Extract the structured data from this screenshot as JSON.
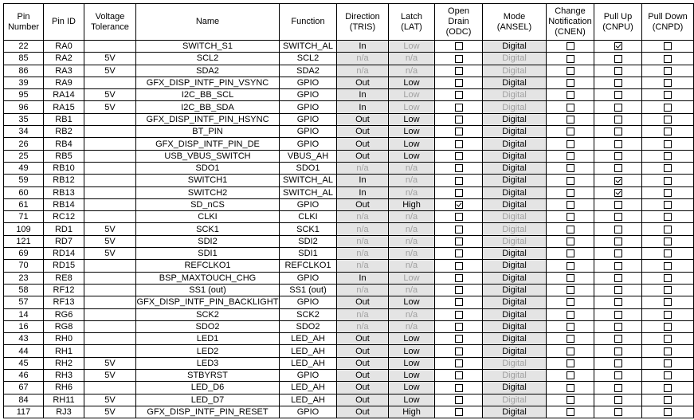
{
  "headers": [
    "Pin Number",
    "Pin ID",
    "Voltage Tolerance",
    "Name",
    "Function",
    "Direction (TRIS)",
    "Latch (LAT)",
    "Open Drain (ODC)",
    "Mode (ANSEL)",
    "Change Notification (CNEN)",
    "Pull Up (CNPU)",
    "Pull Down (CNPD)"
  ],
  "colors": {
    "shaded_cell": "#e4e4e4",
    "disabled_text": "#a0a0a0",
    "border": "#000000"
  },
  "rows": [
    {
      "pin": "22",
      "id": "RA0",
      "volt": "",
      "name": "SWITCH_S1",
      "func": "SWITCH_AL",
      "dir": "In",
      "dir_disabled": false,
      "lat": "Low",
      "lat_disabled": true,
      "odc": false,
      "mode": "Digital",
      "mode_disabled": false,
      "cnen": false,
      "cnpu": true,
      "cnpd": false
    },
    {
      "pin": "85",
      "id": "RA2",
      "volt": "5V",
      "name": "SCL2",
      "func": "SCL2",
      "dir": "n/a",
      "dir_disabled": true,
      "lat": "n/a",
      "lat_disabled": true,
      "odc": false,
      "mode": "Digital",
      "mode_disabled": true,
      "cnen": false,
      "cnpu": false,
      "cnpd": false
    },
    {
      "pin": "86",
      "id": "RA3",
      "volt": "5V",
      "name": "SDA2",
      "func": "SDA2",
      "dir": "n/a",
      "dir_disabled": true,
      "lat": "n/a",
      "lat_disabled": true,
      "odc": false,
      "mode": "Digital",
      "mode_disabled": true,
      "cnen": false,
      "cnpu": false,
      "cnpd": false
    },
    {
      "pin": "39",
      "id": "RA9",
      "volt": "",
      "name": "GFX_DISP_INTF_PIN_VSYNC",
      "func": "GPIO",
      "dir": "Out",
      "dir_disabled": false,
      "lat": "Low",
      "lat_disabled": false,
      "odc": false,
      "mode": "Digital",
      "mode_disabled": false,
      "cnen": false,
      "cnpu": false,
      "cnpd": false
    },
    {
      "pin": "95",
      "id": "RA14",
      "volt": "5V",
      "name": "I2C_BB_SCL",
      "func": "GPIO",
      "dir": "In",
      "dir_disabled": false,
      "lat": "Low",
      "lat_disabled": true,
      "odc": false,
      "mode": "Digital",
      "mode_disabled": true,
      "cnen": false,
      "cnpu": false,
      "cnpd": false
    },
    {
      "pin": "96",
      "id": "RA15",
      "volt": "5V",
      "name": "I2C_BB_SDA",
      "func": "GPIO",
      "dir": "In",
      "dir_disabled": false,
      "lat": "Low",
      "lat_disabled": true,
      "odc": false,
      "mode": "Digital",
      "mode_disabled": true,
      "cnen": false,
      "cnpu": false,
      "cnpd": false
    },
    {
      "pin": "35",
      "id": "RB1",
      "volt": "",
      "name": "GFX_DISP_INTF_PIN_HSYNC",
      "func": "GPIO",
      "dir": "Out",
      "dir_disabled": false,
      "lat": "Low",
      "lat_disabled": false,
      "odc": false,
      "mode": "Digital",
      "mode_disabled": false,
      "cnen": false,
      "cnpu": false,
      "cnpd": false
    },
    {
      "pin": "34",
      "id": "RB2",
      "volt": "",
      "name": "BT_PIN",
      "func": "GPIO",
      "dir": "Out",
      "dir_disabled": false,
      "lat": "Low",
      "lat_disabled": false,
      "odc": false,
      "mode": "Digital",
      "mode_disabled": false,
      "cnen": false,
      "cnpu": false,
      "cnpd": false
    },
    {
      "pin": "26",
      "id": "RB4",
      "volt": "",
      "name": "GFX_DISP_INTF_PIN_DE",
      "func": "GPIO",
      "dir": "Out",
      "dir_disabled": false,
      "lat": "Low",
      "lat_disabled": false,
      "odc": false,
      "mode": "Digital",
      "mode_disabled": false,
      "cnen": false,
      "cnpu": false,
      "cnpd": false
    },
    {
      "pin": "25",
      "id": "RB5",
      "volt": "",
      "name": "USB_VBUS_SWITCH",
      "func": "VBUS_AH",
      "dir": "Out",
      "dir_disabled": false,
      "lat": "Low",
      "lat_disabled": false,
      "odc": false,
      "mode": "Digital",
      "mode_disabled": false,
      "cnen": false,
      "cnpu": false,
      "cnpd": false
    },
    {
      "pin": "49",
      "id": "RB10",
      "volt": "",
      "name": "SDO1",
      "func": "SDO1",
      "dir": "n/a",
      "dir_disabled": true,
      "lat": "n/a",
      "lat_disabled": true,
      "odc": false,
      "mode": "Digital",
      "mode_disabled": false,
      "cnen": false,
      "cnpu": false,
      "cnpd": false
    },
    {
      "pin": "59",
      "id": "RB12",
      "volt": "",
      "name": "SWITCH1",
      "func": "SWITCH_AL",
      "dir": "In",
      "dir_disabled": false,
      "lat": "n/a",
      "lat_disabled": true,
      "odc": false,
      "mode": "Digital",
      "mode_disabled": false,
      "cnen": false,
      "cnpu": true,
      "cnpd": false
    },
    {
      "pin": "60",
      "id": "RB13",
      "volt": "",
      "name": "SWITCH2",
      "func": "SWITCH_AL",
      "dir": "In",
      "dir_disabled": false,
      "lat": "n/a",
      "lat_disabled": true,
      "odc": false,
      "mode": "Digital",
      "mode_disabled": false,
      "cnen": false,
      "cnpu": true,
      "cnpd": false
    },
    {
      "pin": "61",
      "id": "RB14",
      "volt": "",
      "name": "SD_nCS",
      "func": "GPIO",
      "dir": "Out",
      "dir_disabled": false,
      "lat": "High",
      "lat_disabled": false,
      "odc": true,
      "mode": "Digital",
      "mode_disabled": false,
      "cnen": false,
      "cnpu": false,
      "cnpd": false
    },
    {
      "pin": "71",
      "id": "RC12",
      "volt": "",
      "name": "CLKI",
      "func": "CLKI",
      "dir": "n/a",
      "dir_disabled": true,
      "lat": "n/a",
      "lat_disabled": true,
      "odc": false,
      "mode": "Digital",
      "mode_disabled": true,
      "cnen": false,
      "cnpu": false,
      "cnpd": false
    },
    {
      "pin": "109",
      "id": "RD1",
      "volt": "5V",
      "name": "SCK1",
      "func": "SCK1",
      "dir": "n/a",
      "dir_disabled": true,
      "lat": "n/a",
      "lat_disabled": true,
      "odc": false,
      "mode": "Digital",
      "mode_disabled": true,
      "cnen": false,
      "cnpu": false,
      "cnpd": false
    },
    {
      "pin": "121",
      "id": "RD7",
      "volt": "5V",
      "name": "SDI2",
      "func": "SDI2",
      "dir": "n/a",
      "dir_disabled": true,
      "lat": "n/a",
      "lat_disabled": true,
      "odc": false,
      "mode": "Digital",
      "mode_disabled": true,
      "cnen": false,
      "cnpu": false,
      "cnpd": false
    },
    {
      "pin": "69",
      "id": "RD14",
      "volt": "5V",
      "name": "SDI1",
      "func": "SDI1",
      "dir": "n/a",
      "dir_disabled": true,
      "lat": "n/a",
      "lat_disabled": true,
      "odc": false,
      "mode": "Digital",
      "mode_disabled": false,
      "cnen": false,
      "cnpu": false,
      "cnpd": false
    },
    {
      "pin": "70",
      "id": "RD15",
      "volt": "",
      "name": "REFCLKO1",
      "func": "REFCLKO1",
      "dir": "n/a",
      "dir_disabled": true,
      "lat": "n/a",
      "lat_disabled": true,
      "odc": false,
      "mode": "Digital",
      "mode_disabled": false,
      "cnen": false,
      "cnpu": false,
      "cnpd": false
    },
    {
      "pin": "23",
      "id": "RE8",
      "volt": "",
      "name": "BSP_MAXTOUCH_CHG",
      "func": "GPIO",
      "dir": "In",
      "dir_disabled": false,
      "lat": "Low",
      "lat_disabled": true,
      "odc": false,
      "mode": "Digital",
      "mode_disabled": false,
      "cnen": false,
      "cnpu": false,
      "cnpd": false
    },
    {
      "pin": "58",
      "id": "RF12",
      "volt": "",
      "name": "SS1 (out)",
      "func": "SS1 (out)",
      "dir": "n/a",
      "dir_disabled": true,
      "lat": "n/a",
      "lat_disabled": true,
      "odc": false,
      "mode": "Digital",
      "mode_disabled": false,
      "cnen": false,
      "cnpu": false,
      "cnpd": false
    },
    {
      "pin": "57",
      "id": "RF13",
      "volt": "",
      "name": "GFX_DISP_INTF_PIN_BACKLIGHT",
      "func": "GPIO",
      "dir": "Out",
      "dir_disabled": false,
      "lat": "Low",
      "lat_disabled": false,
      "odc": false,
      "mode": "Digital",
      "mode_disabled": false,
      "cnen": false,
      "cnpu": false,
      "cnpd": false
    },
    {
      "pin": "14",
      "id": "RG6",
      "volt": "",
      "name": "SCK2",
      "func": "SCK2",
      "dir": "n/a",
      "dir_disabled": true,
      "lat": "n/a",
      "lat_disabled": true,
      "odc": false,
      "mode": "Digital",
      "mode_disabled": false,
      "cnen": false,
      "cnpu": false,
      "cnpd": false
    },
    {
      "pin": "16",
      "id": "RG8",
      "volt": "",
      "name": "SDO2",
      "func": "SDO2",
      "dir": "n/a",
      "dir_disabled": true,
      "lat": "n/a",
      "lat_disabled": true,
      "odc": false,
      "mode": "Digital",
      "mode_disabled": false,
      "cnen": false,
      "cnpu": false,
      "cnpd": false
    },
    {
      "pin": "43",
      "id": "RH0",
      "volt": "",
      "name": "LED1",
      "func": "LED_AH",
      "dir": "Out",
      "dir_disabled": false,
      "lat": "Low",
      "lat_disabled": false,
      "odc": false,
      "mode": "Digital",
      "mode_disabled": false,
      "cnen": false,
      "cnpu": false,
      "cnpd": false
    },
    {
      "pin": "44",
      "id": "RH1",
      "volt": "",
      "name": "LED2",
      "func": "LED_AH",
      "dir": "Out",
      "dir_disabled": false,
      "lat": "Low",
      "lat_disabled": false,
      "odc": false,
      "mode": "Digital",
      "mode_disabled": false,
      "cnen": false,
      "cnpu": false,
      "cnpd": false
    },
    {
      "pin": "45",
      "id": "RH2",
      "volt": "5V",
      "name": "LED3",
      "func": "LED_AH",
      "dir": "Out",
      "dir_disabled": false,
      "lat": "Low",
      "lat_disabled": false,
      "odc": false,
      "mode": "Digital",
      "mode_disabled": true,
      "cnen": false,
      "cnpu": false,
      "cnpd": false
    },
    {
      "pin": "46",
      "id": "RH3",
      "volt": "5V",
      "name": "STBYRST",
      "func": "GPIO",
      "dir": "Out",
      "dir_disabled": false,
      "lat": "Low",
      "lat_disabled": false,
      "odc": false,
      "mode": "Digital",
      "mode_disabled": true,
      "cnen": false,
      "cnpu": false,
      "cnpd": false
    },
    {
      "pin": "67",
      "id": "RH6",
      "volt": "",
      "name": "LED_D6",
      "func": "LED_AH",
      "dir": "Out",
      "dir_disabled": false,
      "lat": "Low",
      "lat_disabled": false,
      "odc": false,
      "mode": "Digital",
      "mode_disabled": false,
      "cnen": false,
      "cnpu": false,
      "cnpd": false
    },
    {
      "pin": "84",
      "id": "RH11",
      "volt": "5V",
      "name": "LED_D7",
      "func": "LED_AH",
      "dir": "Out",
      "dir_disabled": false,
      "lat": "Low",
      "lat_disabled": false,
      "odc": false,
      "mode": "Digital",
      "mode_disabled": true,
      "cnen": false,
      "cnpu": false,
      "cnpd": false
    },
    {
      "pin": "117",
      "id": "RJ3",
      "volt": "5V",
      "name": "GFX_DISP_INTF_PIN_RESET",
      "func": "GPIO",
      "dir": "Out",
      "dir_disabled": false,
      "lat": "High",
      "lat_disabled": false,
      "odc": false,
      "mode": "Digital",
      "mode_disabled": false,
      "cnen": false,
      "cnpu": false,
      "cnpd": false
    }
  ]
}
